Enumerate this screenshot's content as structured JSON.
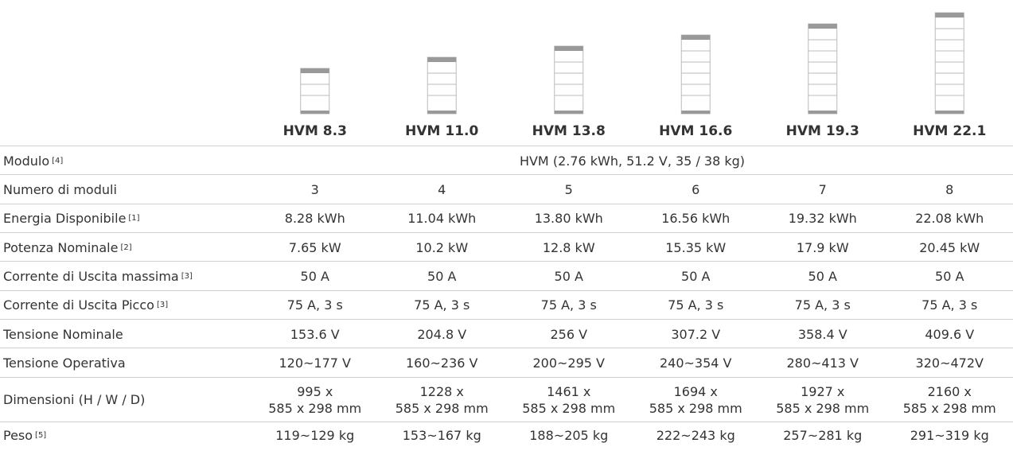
{
  "header": {
    "models": [
      "HVM 8.3",
      "HVM 11.0",
      "HVM 13.8",
      "HVM 16.6",
      "HVM 19.3",
      "HVM 22.1"
    ]
  },
  "table": {
    "rows": [
      {
        "label": "Modulo",
        "note": "[4]",
        "span": "HVM (2.76 kWh, 51.2 V, 35 / 38 kg)"
      },
      {
        "label": "Numero di moduli",
        "cells": [
          "3",
          "4",
          "5",
          "6",
          "7",
          "8"
        ]
      },
      {
        "label": "Energia Disponibile",
        "note": "[1]",
        "cells": [
          "8.28 kWh",
          "11.04 kWh",
          "13.80 kWh",
          "16.56 kWh",
          "19.32 kWh",
          "22.08 kWh"
        ]
      },
      {
        "label": "Potenza Nominale",
        "note": "[2]",
        "cells": [
          "7.65 kW",
          "10.2 kW",
          "12.8 kW",
          "15.35 kW",
          "17.9 kW",
          "20.45 kW"
        ]
      },
      {
        "label": "Corrente di Uscita massima",
        "note": "[3]",
        "cells": [
          "50 A",
          "50 A",
          "50 A",
          "50 A",
          "50 A",
          "50 A"
        ]
      },
      {
        "label": "Corrente di Uscita Picco",
        "note": "[3]",
        "cells": [
          "75 A, 3 s",
          "75 A, 3 s",
          "75 A, 3 s",
          "75 A, 3 s",
          "75 A, 3 s",
          "75 A, 3 s"
        ]
      },
      {
        "label": "Tensione Nominale",
        "cells": [
          "153.6 V",
          "204.8 V",
          "256 V",
          "307.2 V",
          "358.4 V",
          "409.6 V"
        ]
      },
      {
        "label": "Tensione Operativa",
        "cells": [
          "120~177 V",
          "160~236 V",
          "200~295 V",
          "240~354 V",
          "280~413 V",
          "320~472V"
        ]
      },
      {
        "label": "Dimensioni (H / W / D)",
        "cells": [
          [
            "995 x",
            "585 x 298 mm"
          ],
          [
            "1228 x",
            "585 x 298 mm"
          ],
          [
            "1461 x",
            "585 x 298 mm"
          ],
          [
            "1694 x",
            "585 x 298 mm"
          ],
          [
            "1927 x",
            "585 x 298 mm"
          ],
          [
            "2160 x",
            "585 x 298 mm"
          ]
        ]
      },
      {
        "label": "Peso",
        "note": "[5]",
        "cells": [
          "119~129 kg",
          "153~167 kg",
          "188~205 kg",
          "222~243 kg",
          "257~281 kg",
          "291~319 kg"
        ]
      }
    ]
  }
}
